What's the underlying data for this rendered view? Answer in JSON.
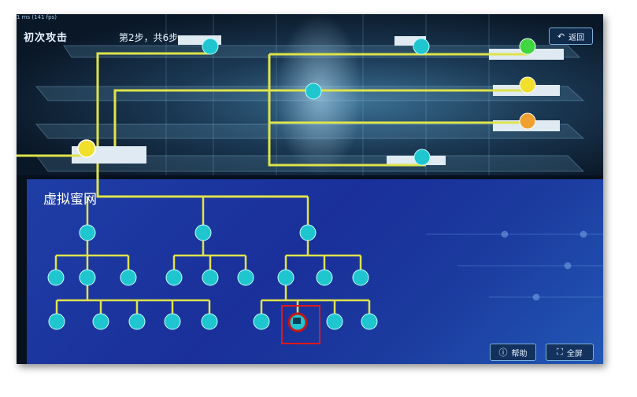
{
  "header": {
    "fps": "1 ms (141 fps)",
    "scene_title": "初次攻击",
    "step": "第2步，共6步"
  },
  "honeynet": {
    "title": "虚拟蜜网"
  },
  "buttons": {
    "back_label": "返回",
    "help_label": "帮助",
    "fullscreen_label": "全屏"
  },
  "colors": {
    "cable": "#dfe34a",
    "node_cyan": "#1fc6d0",
    "node_green": "#3fd640",
    "node_yellow": "#f0e02c",
    "node_orange": "#f0a030",
    "selection": "#e01818"
  },
  "icons": {
    "back": "back-arrow-icon",
    "help": "question-icon",
    "fullscreen": "expand-icon"
  },
  "selected_node": "honeynet-host-pc"
}
